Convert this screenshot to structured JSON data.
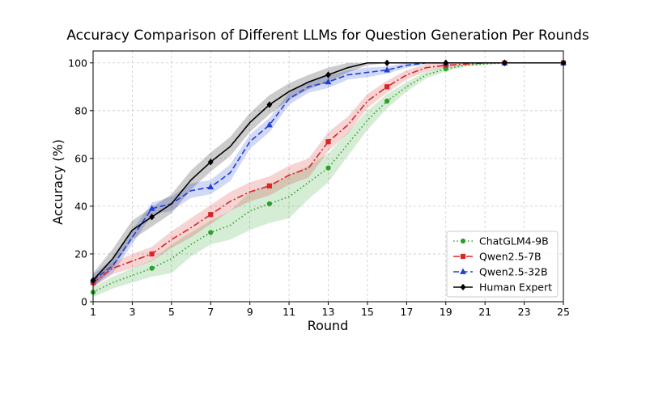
{
  "chart_data": {
    "type": "line",
    "title": "Accuracy Comparison of Different LLMs for Question Generation Per Rounds",
    "xlabel": "Round",
    "ylabel": "Accuracy (%)",
    "xlim": [
      1,
      25
    ],
    "ylim": [
      0,
      105
    ],
    "xticks": [
      1,
      3,
      5,
      7,
      9,
      11,
      13,
      15,
      17,
      19,
      21,
      23,
      25
    ],
    "yticks": [
      0,
      20,
      40,
      60,
      80,
      100
    ],
    "grid": true,
    "legend_position": "lower-right",
    "series": [
      {
        "name": "ChatGLM4-9B",
        "color": "#2ca02c",
        "line_style": "dotted",
        "marker": "circle",
        "x": [
          1,
          2,
          3,
          4,
          5,
          6,
          7,
          8,
          9,
          10,
          11,
          12,
          13,
          14,
          15,
          16,
          17,
          18,
          19,
          20,
          21,
          22,
          23,
          24,
          25
        ],
        "values": [
          4,
          8,
          11,
          14,
          18,
          24,
          29,
          32,
          38,
          41,
          44,
          50,
          56,
          66,
          76,
          84,
          90,
          95,
          97.5,
          99,
          99.5,
          100,
          100,
          100,
          100
        ],
        "band": [
          2,
          2.5,
          3,
          3.5,
          6,
          5,
          5,
          6,
          8,
          8,
          9,
          7,
          6,
          5,
          4,
          3,
          2,
          1.5,
          1,
          0.5,
          0.3,
          0,
          0,
          0,
          0
        ],
        "marker_rounds": [
          1,
          4,
          7,
          10,
          13,
          16,
          19,
          22,
          25
        ]
      },
      {
        "name": "Qwen2.5-7B",
        "color": "#d62728",
        "line_style": "dashdot",
        "marker": "square",
        "x": [
          1,
          2,
          3,
          4,
          5,
          6,
          7,
          8,
          9,
          10,
          11,
          12,
          13,
          14,
          15,
          16,
          17,
          18,
          19,
          20,
          21,
          22,
          23,
          24,
          25
        ],
        "values": [
          8,
          14,
          17,
          20,
          26,
          31,
          36.5,
          42,
          46,
          48.5,
          53,
          56,
          67,
          74,
          84,
          90,
          95,
          98,
          99,
          99.5,
          100,
          100,
          100,
          100,
          100
        ],
        "band": [
          2,
          2.5,
          3,
          3,
          3.5,
          4,
          4,
          4,
          4,
          4,
          4,
          4,
          4,
          3.5,
          3,
          2.5,
          2,
          1.5,
          1,
          0.5,
          0.3,
          0,
          0,
          0,
          0
        ],
        "marker_rounds": [
          1,
          4,
          7,
          10,
          13,
          16,
          19,
          22,
          25
        ]
      },
      {
        "name": "Qwen2.5-32B",
        "color": "#1f3fd6",
        "line_style": "dashed",
        "marker": "triangle",
        "x": [
          1,
          2,
          3,
          4,
          5,
          6,
          7,
          8,
          9,
          10,
          11,
          12,
          13,
          14,
          15,
          16,
          17,
          18,
          19,
          20,
          21,
          22,
          23,
          24,
          25
        ],
        "values": [
          9,
          15,
          27,
          39,
          41,
          46.5,
          48,
          54,
          67,
          74,
          85,
          90,
          92,
          95,
          96,
          97,
          99,
          100,
          100,
          100,
          100,
          100,
          100,
          100,
          100
        ],
        "band": [
          2.5,
          3,
          3,
          2.5,
          3,
          3,
          3,
          3.5,
          3,
          3,
          2.5,
          2.5,
          2.5,
          2,
          2,
          1.5,
          1,
          0.5,
          0.3,
          0,
          0,
          0,
          0,
          0,
          0
        ],
        "marker_rounds": [
          1,
          4,
          7,
          10,
          13,
          16,
          19,
          22,
          25
        ]
      },
      {
        "name": "Human Expert",
        "color": "#000000",
        "line_style": "solid",
        "marker": "diamond",
        "x": [
          1,
          2,
          3,
          4,
          5,
          6,
          7,
          8,
          9,
          10,
          11,
          12,
          13,
          14,
          15,
          16,
          17,
          18,
          19,
          20,
          21,
          22,
          23,
          24,
          25
        ],
        "values": [
          9,
          18,
          30,
          35.5,
          41,
          51,
          58.5,
          65,
          75,
          82.5,
          88,
          92,
          95,
          98,
          100,
          100,
          100,
          100,
          100,
          100,
          100,
          100,
          100,
          100,
          100
        ],
        "band": [
          3,
          4,
          4,
          4,
          4,
          4,
          4,
          4,
          4,
          4,
          3.5,
          3,
          3,
          2,
          1,
          0,
          0,
          0,
          0,
          0,
          0,
          0,
          0,
          0,
          0
        ],
        "marker_rounds": [
          1,
          4,
          7,
          10,
          13,
          16,
          19,
          22,
          25
        ]
      }
    ]
  }
}
